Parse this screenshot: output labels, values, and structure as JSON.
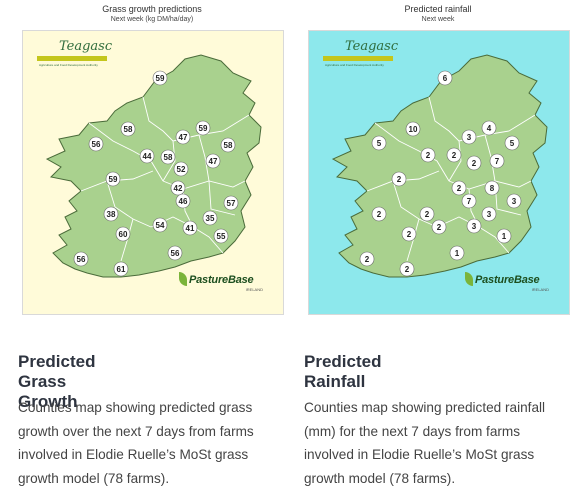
{
  "cards": [
    {
      "map_title": "Grass growth predictions",
      "map_subtitle": "Next week (kg DM/ha/day)",
      "background": "#fffbd9",
      "logo_text": "Teagasc",
      "logo_subtext": "Agriculture and Food Development Authority",
      "brand": "PastureBase",
      "brand_sub": "IRELAND",
      "values": [
        "59",
        "58",
        "47",
        "59",
        "56",
        "44",
        "58",
        "58",
        "52",
        "47",
        "59",
        "42",
        "46",
        "57",
        "38",
        "54",
        "35",
        "60",
        "41",
        "55",
        "56",
        "61",
        "56"
      ],
      "heading": "Predicted Grass Growth",
      "description": "Counties map showing predicted grass growth over the next 7 days from farms involved in Elodie Ruelle’s MoSt grass growth model (78 farms)."
    },
    {
      "map_title": "Predicted rainfall",
      "map_subtitle": "Next week",
      "background": "#8de8ec",
      "logo_text": "Teagasc",
      "logo_subtext": "Agriculture and Food Development Authority",
      "brand": "PastureBase",
      "brand_sub": "IRELAND",
      "values": [
        "6",
        "10",
        "4",
        "3",
        "5",
        "5",
        "2",
        "2",
        "2",
        "7",
        "2",
        "2",
        "2",
        "8",
        "7",
        "3",
        "3",
        "2",
        "2",
        "3",
        "1",
        "2",
        "1",
        "2",
        "2"
      ],
      "heading": "Predicted Rainfall",
      "description": "Counties map showing predicted rainfall (mm) for the next 7 days from farms involved in Elodie Ruelle’s MoSt grass growth model (78 farms)."
    }
  ]
}
